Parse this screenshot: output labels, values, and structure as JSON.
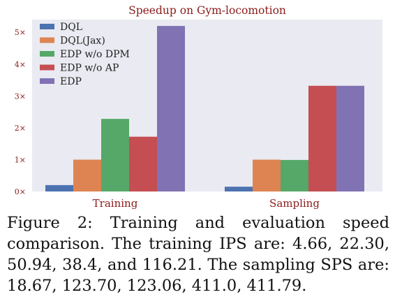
{
  "chart_data": {
    "type": "bar",
    "title": "Speedup on Gym-locomotion",
    "categories": [
      "Training",
      "Sampling"
    ],
    "series": [
      {
        "name": "DQL",
        "values": [
          0.2,
          0.15
        ],
        "color": "#4c72b0"
      },
      {
        "name": "DQL(Jax)",
        "values": [
          1.0,
          1.0
        ],
        "color": "#dd8452"
      },
      {
        "name": "EDP w/o DPM",
        "values": [
          2.28,
          0.99
        ],
        "color": "#55a868"
      },
      {
        "name": "EDP w/o AP",
        "values": [
          1.72,
          3.32
        ],
        "color": "#c44e52"
      },
      {
        "name": "EDP",
        "values": [
          5.2,
          3.32
        ],
        "color": "#8172b3"
      }
    ],
    "ylim": [
      0,
      5.4
    ],
    "yticks": [
      0,
      1,
      2,
      3,
      4,
      5
    ],
    "ytick_labels": [
      "0×",
      "1×",
      "2×",
      "3×",
      "4×",
      "5×"
    ],
    "xlabel": "",
    "ylabel": "",
    "grid": false,
    "legend_position": "top-left",
    "background": "#eaeaf2"
  },
  "caption": "Figure 2: Training and evaluation speed comparison. The training IPS are: 4.66, 22.30, 50.94, 38.4, and 116.21. The sampling SPS are: 18.67, 123.70, 123.06, 411.0, 411.79."
}
